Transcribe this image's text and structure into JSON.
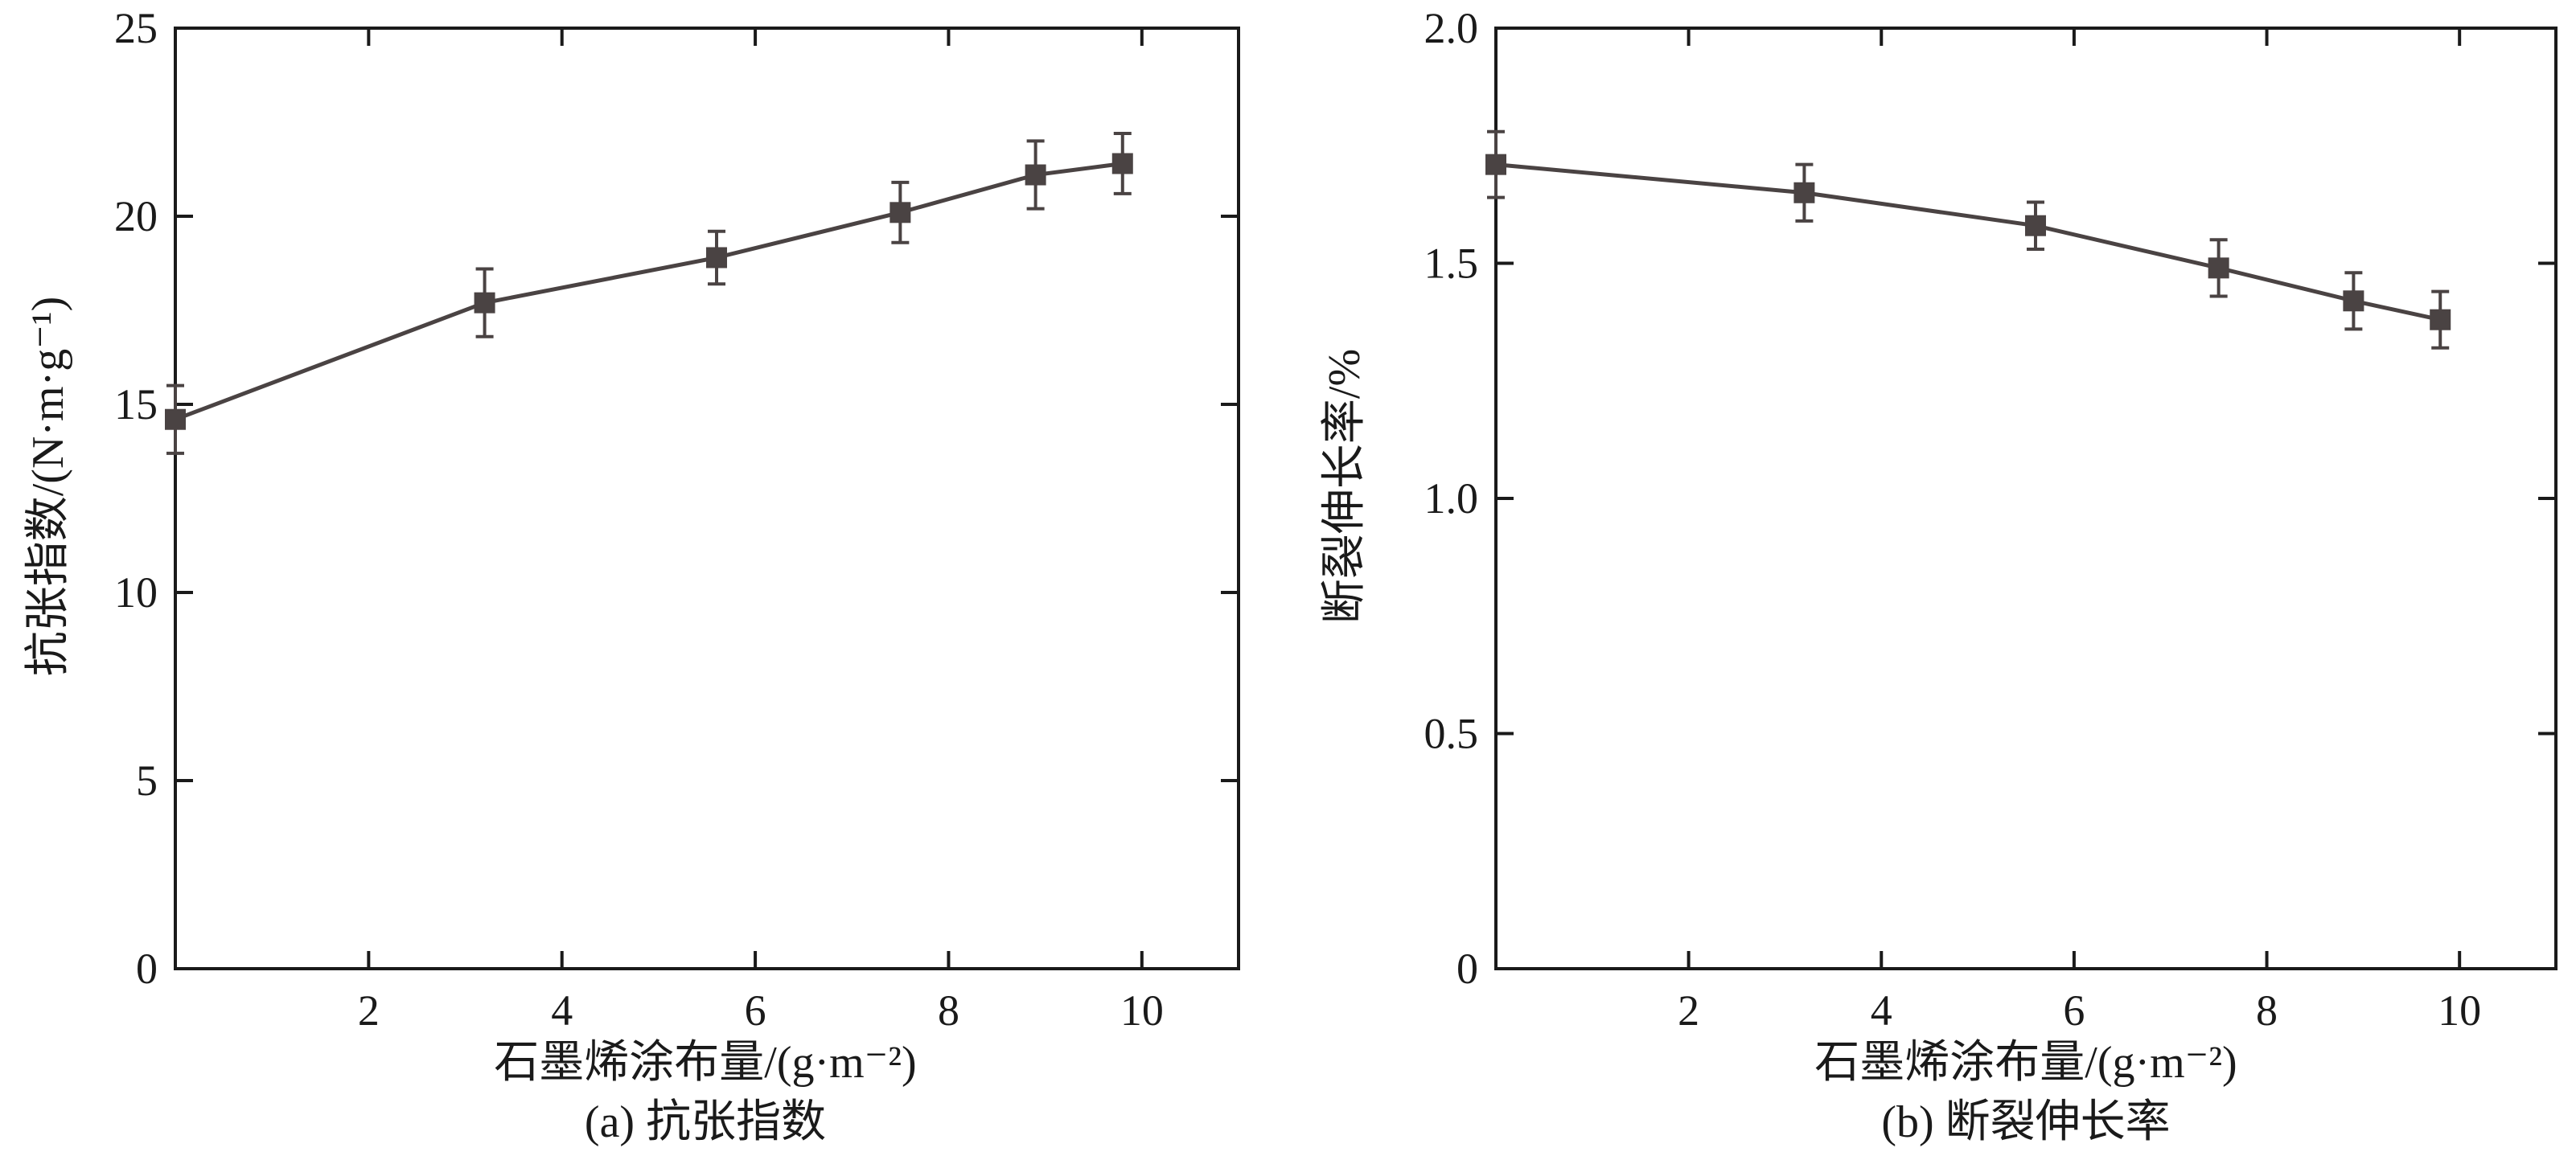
{
  "colors": {
    "line": "#4a4343",
    "axis": "#1a1a1a"
  },
  "chart_data": [
    {
      "type": "line",
      "title": "",
      "caption": "(a) 抗张指数",
      "xlabel": "石墨烯涂布量/(g·m⁻²)",
      "ylabel": "抗张指数/(N·m·g⁻¹)",
      "xlim": [
        0,
        11
      ],
      "ylim": [
        0,
        25
      ],
      "xticks": [
        2,
        4,
        6,
        8,
        10
      ],
      "xtick_labels": [
        "2",
        "4",
        "6",
        "8",
        "10"
      ],
      "yticks": [
        0,
        5,
        10,
        15,
        20,
        25
      ],
      "ytick_labels": [
        "0",
        "5",
        "10",
        "15",
        "20",
        "25"
      ],
      "marker": "square",
      "error_bars": true,
      "series": [
        {
          "x": [
            0,
            3.2,
            5.6,
            7.5,
            8.9,
            9.8
          ],
          "y": [
            14.6,
            17.7,
            18.9,
            20.1,
            21.1,
            21.4
          ],
          "err": [
            0.9,
            0.9,
            0.7,
            0.8,
            0.9,
            0.8
          ]
        }
      ]
    },
    {
      "type": "line",
      "title": "",
      "caption": "(b) 断裂伸长率",
      "xlabel": "石墨烯涂布量/(g·m⁻²)",
      "ylabel": "断裂伸长率/%",
      "xlim": [
        0,
        11
      ],
      "ylim": [
        0,
        2.0
      ],
      "xticks": [
        2,
        4,
        6,
        8,
        10
      ],
      "xtick_labels": [
        "2",
        "4",
        "6",
        "8",
        "10"
      ],
      "yticks": [
        0,
        0.5,
        1.0,
        1.5,
        2.0
      ],
      "ytick_labels": [
        "0",
        "0.5",
        "1.0",
        "1.5",
        "2.0"
      ],
      "marker": "square",
      "error_bars": true,
      "series": [
        {
          "x": [
            0,
            3.2,
            5.6,
            7.5,
            8.9,
            9.8
          ],
          "y": [
            1.71,
            1.65,
            1.58,
            1.49,
            1.42,
            1.38
          ],
          "err": [
            0.07,
            0.06,
            0.05,
            0.06,
            0.06,
            0.06
          ]
        }
      ]
    }
  ]
}
